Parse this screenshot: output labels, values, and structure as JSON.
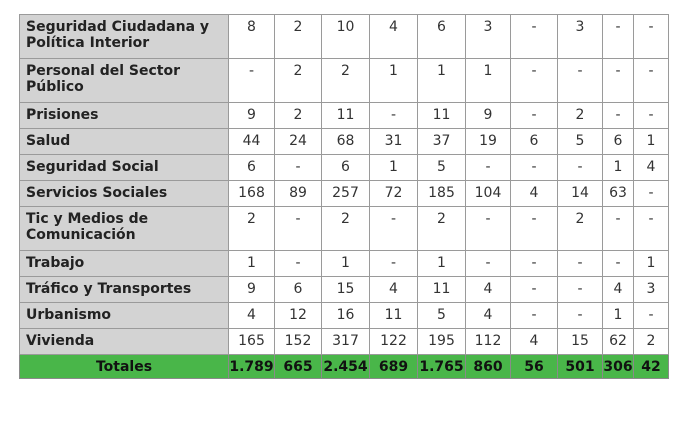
{
  "table": {
    "rows": [
      {
        "label": "Seguridad Ciudadana y Política Interior",
        "values": [
          "8",
          "2",
          "10",
          "4",
          "6",
          "3",
          "-",
          "3",
          "-",
          "-"
        ]
      },
      {
        "label": "Personal del Sector Público",
        "values": [
          "-",
          "2",
          "2",
          "1",
          "1",
          "1",
          "-",
          "-",
          "-",
          "-"
        ]
      },
      {
        "label": "Prisiones",
        "values": [
          "9",
          "2",
          "11",
          "-",
          "11",
          "9",
          "-",
          "2",
          "-",
          "-"
        ]
      },
      {
        "label": "Salud",
        "values": [
          "44",
          "24",
          "68",
          "31",
          "37",
          "19",
          "6",
          "5",
          "6",
          "1"
        ]
      },
      {
        "label": "Seguridad Social",
        "values": [
          "6",
          "-",
          "6",
          "1",
          "5",
          "-",
          "-",
          "-",
          "1",
          "4"
        ]
      },
      {
        "label": "Servicios Sociales",
        "values": [
          "168",
          "89",
          "257",
          "72",
          "185",
          "104",
          "4",
          "14",
          "63",
          "-"
        ]
      },
      {
        "label": "Tic y Medios de Comunicación",
        "values": [
          "2",
          "-",
          "2",
          "-",
          "2",
          "-",
          "-",
          "2",
          "-",
          "-"
        ]
      },
      {
        "label": "Trabajo",
        "values": [
          "1",
          "-",
          "1",
          "-",
          "1",
          "-",
          "-",
          "-",
          "-",
          "1"
        ]
      },
      {
        "label": "Tráfico y Transportes",
        "values": [
          "9",
          "6",
          "15",
          "4",
          "11",
          "4",
          "-",
          "-",
          "4",
          "3"
        ]
      },
      {
        "label": "Urbanismo",
        "values": [
          "4",
          "12",
          "16",
          "11",
          "5",
          "4",
          "-",
          "-",
          "1",
          "-"
        ]
      },
      {
        "label": "Vivienda",
        "values": [
          "165",
          "152",
          "317",
          "122",
          "195",
          "112",
          "4",
          "15",
          "62",
          "2"
        ]
      }
    ],
    "totals": {
      "label": "Totales",
      "values": [
        "1.789",
        "665",
        "2.454",
        "689",
        "1.765",
        "860",
        "56",
        "501",
        "306",
        "42"
      ]
    }
  }
}
